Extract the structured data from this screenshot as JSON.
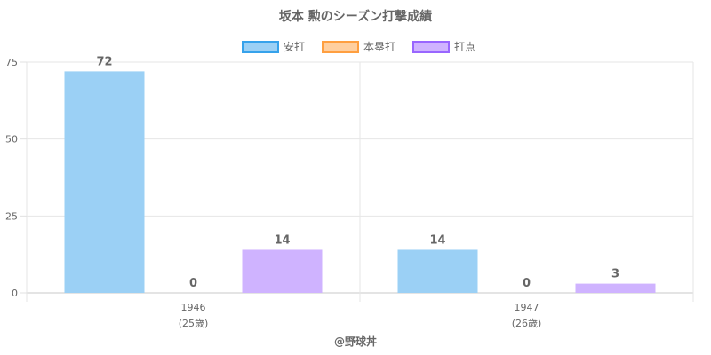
{
  "chart_data": {
    "type": "bar",
    "title": "坂本 勲のシーズン打撃成績",
    "categories": [
      "1946",
      "1947"
    ],
    "category_sublabels": [
      "(25歳)",
      "(26歳)"
    ],
    "series": [
      {
        "name": "安打",
        "values": [
          72,
          14
        ],
        "color": "#9bd0f5",
        "border": "#36a2eb"
      },
      {
        "name": "本塁打",
        "values": [
          0,
          0
        ],
        "color": "#ffcf9f",
        "border": "#ff9f40"
      },
      {
        "name": "打点",
        "values": [
          14,
          3
        ],
        "color": "#cfb3ff",
        "border": "#9966ff"
      }
    ],
    "yticks": [
      0,
      25,
      50,
      75
    ],
    "ylim": [
      0,
      75
    ],
    "grid": true,
    "legend_position": "top"
  },
  "footer": {
    "credit": "@野球丼"
  }
}
